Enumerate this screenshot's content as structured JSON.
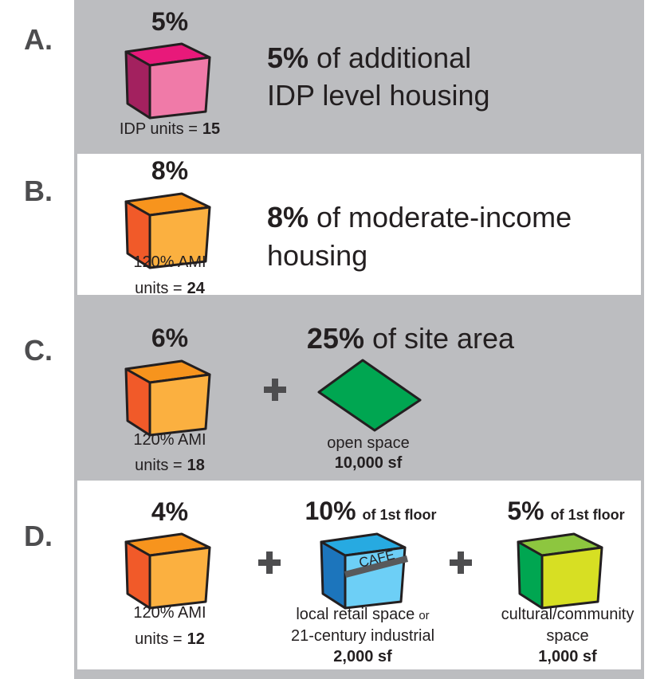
{
  "options": [
    {
      "letter": "A.",
      "percent": "5%",
      "unit_lines": [
        "IDP units ="
      ],
      "unit_count": "15",
      "description_bold": "5%",
      "description_lines": [
        "of additional",
        "IDP level housing"
      ]
    },
    {
      "letter": "B.",
      "percent": "8%",
      "unit_lines": [
        "120% AMI",
        "units ="
      ],
      "unit_count": "24",
      "description_bold": "8%",
      "description_lines": [
        "of moderate-income",
        "housing"
      ]
    },
    {
      "letter": "C.",
      "percent": "6%",
      "unit_lines": [
        "120% AMI",
        "units ="
      ],
      "unit_count": "18",
      "extras": [
        {
          "headline_bold": "25%",
          "headline_rest": "of site area",
          "caption_lines": [
            "open space"
          ],
          "area": "10,000 sf"
        }
      ]
    },
    {
      "letter": "D.",
      "percent": "4%",
      "unit_lines": [
        "120% AMI",
        "units ="
      ],
      "unit_count": "12",
      "extras": [
        {
          "headline_bold": "10%",
          "headline_rest": "of 1st floor",
          "icon_text": "CAFE",
          "caption_lines": [
            "local retail space",
            "or",
            "21-century industrial"
          ],
          "area": "2,000 sf"
        },
        {
          "headline_bold": "5%",
          "headline_rest": "of 1st floor",
          "caption_lines": [
            "cultural/community",
            "space"
          ],
          "area": "1,000 sf"
        }
      ]
    }
  ]
}
